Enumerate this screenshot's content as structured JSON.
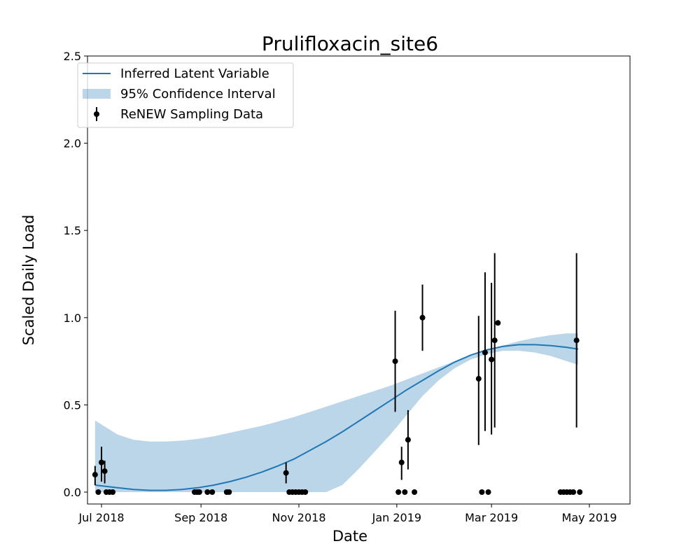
{
  "chart_data": {
    "type": "line",
    "title": "Prulifloxacin_site6",
    "xlabel": "Date",
    "ylabel": "Scaled Daily Load",
    "ylim": [
      -0.13,
      2.5
    ],
    "xlim": [
      -10,
      301
    ],
    "grid": false,
    "legend_position": "top-left",
    "x_ticks": [
      {
        "label": "Jul 2018",
        "x": 0
      },
      {
        "label": "Sep 2018",
        "x": 62
      },
      {
        "label": "Nov 2018",
        "x": 123
      },
      {
        "label": "Jan 2019",
        "x": 184
      },
      {
        "label": "Mar 2019",
        "x": 243
      },
      {
        "label": "May 2019",
        "x": 304
      }
    ],
    "y_ticks": [
      0.0,
      0.5,
      1.0,
      1.5,
      2.0,
      2.5
    ],
    "legend": [
      {
        "label": "Inferred Latent Variable",
        "kind": "line"
      },
      {
        "label": "95% Confidence Interval",
        "kind": "band"
      },
      {
        "label": "ReNEW Sampling Data",
        "kind": "errorbar"
      }
    ],
    "colors": {
      "line": "#1f77b4",
      "band": "#1f77b4",
      "points": "#000000"
    },
    "series": [
      {
        "name": "Inferred Latent Variable",
        "x": [
          -4,
          10,
          20,
          30,
          40,
          50,
          60,
          70,
          80,
          90,
          100,
          110,
          120,
          130,
          140,
          150,
          160,
          170,
          180,
          190,
          200,
          210,
          220,
          230,
          240,
          250,
          260,
          270,
          280,
          290,
          297
        ],
        "y": [
          0.04,
          0.025,
          0.015,
          0.01,
          0.01,
          0.015,
          0.025,
          0.04,
          0.06,
          0.085,
          0.115,
          0.15,
          0.19,
          0.24,
          0.29,
          0.345,
          0.405,
          0.465,
          0.525,
          0.585,
          0.64,
          0.695,
          0.745,
          0.785,
          0.815,
          0.835,
          0.845,
          0.845,
          0.84,
          0.83,
          0.82
        ]
      },
      {
        "name": "95% Confidence Interval",
        "x": [
          -4,
          10,
          20,
          30,
          40,
          50,
          60,
          70,
          80,
          90,
          100,
          110,
          120,
          130,
          140,
          150,
          160,
          170,
          180,
          190,
          200,
          210,
          220,
          230,
          240,
          250,
          260,
          270,
          280,
          290,
          297
        ],
        "lower": [
          0.0,
          0.0,
          0.0,
          0.0,
          0.0,
          0.0,
          0.0,
          0.0,
          0.0,
          0.0,
          0.0,
          0.0,
          0.0,
          0.0,
          0.0,
          0.04,
          0.13,
          0.23,
          0.33,
          0.44,
          0.55,
          0.64,
          0.71,
          0.76,
          0.79,
          0.81,
          0.81,
          0.8,
          0.78,
          0.75,
          0.73
        ],
        "upper": [
          0.41,
          0.33,
          0.3,
          0.29,
          0.29,
          0.295,
          0.305,
          0.32,
          0.34,
          0.36,
          0.38,
          0.405,
          0.43,
          0.46,
          0.49,
          0.52,
          0.55,
          0.58,
          0.61,
          0.645,
          0.68,
          0.715,
          0.75,
          0.78,
          0.81,
          0.84,
          0.865,
          0.885,
          0.9,
          0.91,
          0.91
        ]
      },
      {
        "name": "ReNEW Sampling Data",
        "points": [
          {
            "x": -4,
            "y": 0.1,
            "lo": 0.04,
            "hi": 0.15
          },
          {
            "x": -2,
            "y": 0.0
          },
          {
            "x": 0,
            "y": 0.17,
            "lo": 0.06,
            "hi": 0.26
          },
          {
            "x": 2,
            "y": 0.12,
            "lo": 0.05,
            "hi": 0.18
          },
          {
            "x": 3,
            "y": 0.0
          },
          {
            "x": 5,
            "y": 0.0
          },
          {
            "x": 7,
            "y": 0.0
          },
          {
            "x": 58,
            "y": 0.0
          },
          {
            "x": 59.5,
            "y": 0.0
          },
          {
            "x": 61,
            "y": 0.0
          },
          {
            "x": 66,
            "y": 0.0
          },
          {
            "x": 69,
            "y": 0.0
          },
          {
            "x": 78,
            "y": 0.0
          },
          {
            "x": 79.5,
            "y": 0.0
          },
          {
            "x": 115,
            "y": 0.11,
            "lo": 0.05,
            "hi": 0.17
          },
          {
            "x": 117,
            "y": 0.0
          },
          {
            "x": 119,
            "y": 0.0
          },
          {
            "x": 121,
            "y": 0.0
          },
          {
            "x": 123,
            "y": 0.0
          },
          {
            "x": 125,
            "y": 0.0
          },
          {
            "x": 127,
            "y": 0.0
          },
          {
            "x": 183,
            "y": 0.75,
            "lo": 0.46,
            "hi": 1.04
          },
          {
            "x": 185,
            "y": 0.0
          },
          {
            "x": 187,
            "y": 0.17,
            "lo": 0.07,
            "hi": 0.26
          },
          {
            "x": 189,
            "y": 0.0
          },
          {
            "x": 191,
            "y": 0.3,
            "lo": 0.13,
            "hi": 0.47
          },
          {
            "x": 195,
            "y": 0.0
          },
          {
            "x": 200,
            "y": 1.0,
            "lo": 0.81,
            "hi": 1.19
          },
          {
            "x": 235,
            "y": 0.65,
            "lo": 0.27,
            "hi": 1.01
          },
          {
            "x": 237,
            "y": 0.0
          },
          {
            "x": 239,
            "y": 0.8,
            "lo": 0.35,
            "hi": 1.26
          },
          {
            "x": 241,
            "y": 0.0
          },
          {
            "x": 243,
            "y": 0.76,
            "lo": 0.33,
            "hi": 1.2
          },
          {
            "x": 245,
            "y": 0.87,
            "lo": 0.37,
            "hi": 1.37
          },
          {
            "x": 247,
            "y": 0.97
          },
          {
            "x": 286,
            "y": 0.0
          },
          {
            "x": 288,
            "y": 0.0
          },
          {
            "x": 290,
            "y": 0.0
          },
          {
            "x": 292,
            "y": 0.0
          },
          {
            "x": 294,
            "y": 0.0
          },
          {
            "x": 296,
            "y": 0.87,
            "lo": 0.37,
            "hi": 1.37
          },
          {
            "x": 298,
            "y": 0.0
          }
        ]
      }
    ]
  }
}
